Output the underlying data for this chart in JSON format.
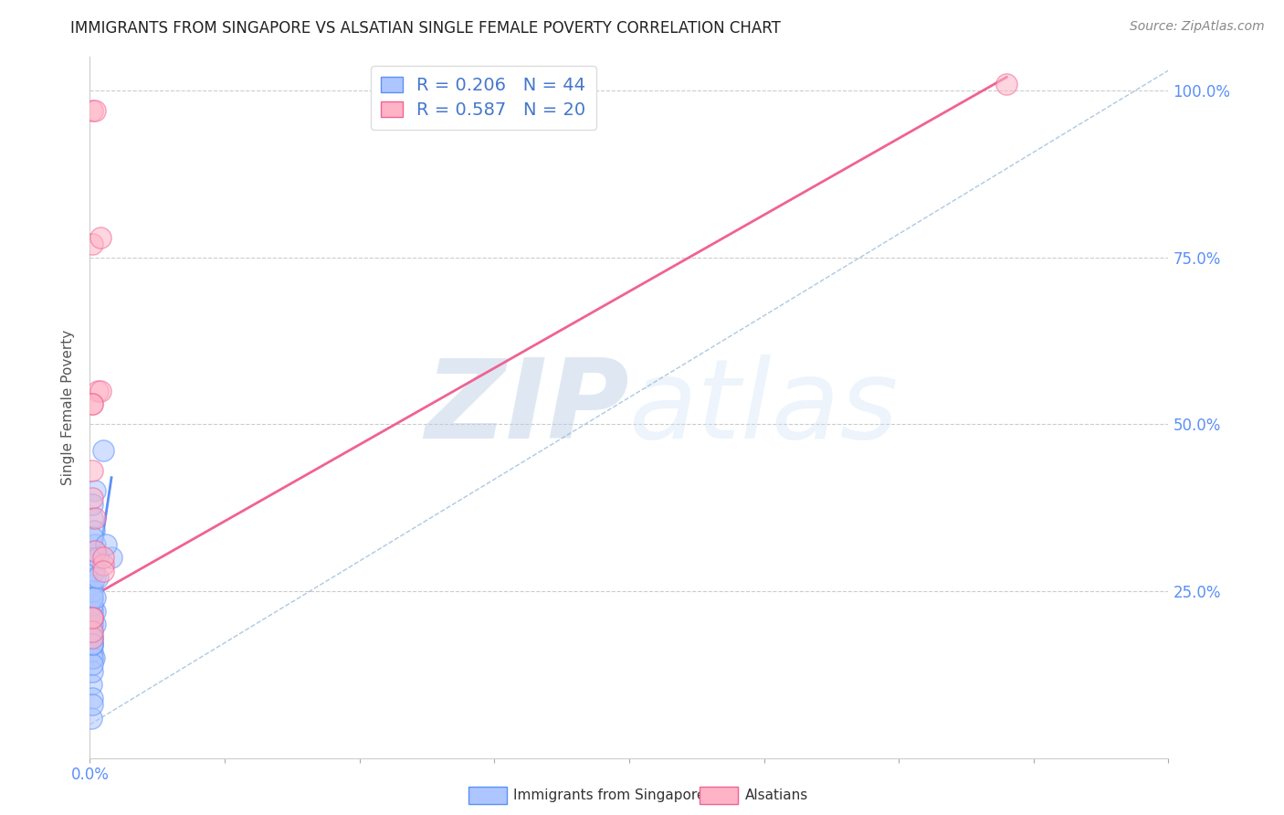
{
  "title": "IMMIGRANTS FROM SINGAPORE VS ALSATIAN SINGLE FEMALE POVERTY CORRELATION CHART",
  "source": "Source: ZipAtlas.com",
  "legend_bottom_blue": "Immigrants from Singapore",
  "legend_bottom_pink": "Alsatians",
  "ylabel": "Single Female Poverty",
  "watermark_zip": "ZIP",
  "watermark_atlas": "atlas",
  "xlim": [
    0.0,
    0.4
  ],
  "ylim": [
    0.0,
    1.05
  ],
  "xtick_vals": [
    0.0,
    0.05,
    0.1,
    0.15,
    0.2,
    0.25,
    0.3,
    0.35,
    0.4
  ],
  "xtick_labels_show": {
    "0.0": "0.0%"
  },
  "ytick_vals": [
    0.25,
    0.5,
    0.75,
    1.0
  ],
  "ytick_labels": [
    "25.0%",
    "50.0%",
    "75.0%",
    "100.0%"
  ],
  "blue_color": "#5b8ff9",
  "pink_color": "#f06292",
  "blue_fill": "#adc6ff",
  "pink_fill": "#ffb3c6",
  "legend_R_blue": "0.206",
  "legend_N_blue": "44",
  "legend_R_pink": "0.587",
  "legend_N_pink": "20",
  "singapore_x": [
    0.001,
    0.002,
    0.001,
    0.0015,
    0.003,
    0.002,
    0.001,
    0.001,
    0.0005,
    0.001,
    0.002,
    0.001,
    0.0008,
    0.001,
    0.0015,
    0.001,
    0.002,
    0.001,
    0.001,
    0.0005,
    0.001,
    0.0008,
    0.002,
    0.0015,
    0.001,
    0.0005,
    0.001,
    0.001,
    0.001,
    0.0008,
    0.001,
    0.002,
    0.003,
    0.001,
    0.0005,
    0.001,
    0.001,
    0.001,
    0.001,
    0.002,
    0.005,
    0.008,
    0.006,
    0.003
  ],
  "singapore_y": [
    0.36,
    0.4,
    0.38,
    0.34,
    0.3,
    0.32,
    0.26,
    0.24,
    0.21,
    0.19,
    0.2,
    0.18,
    0.17,
    0.16,
    0.15,
    0.21,
    0.22,
    0.22,
    0.2,
    0.19,
    0.18,
    0.23,
    0.31,
    0.28,
    0.25,
    0.11,
    0.09,
    0.13,
    0.15,
    0.17,
    0.24,
    0.27,
    0.3,
    0.33,
    0.06,
    0.08,
    0.14,
    0.17,
    0.21,
    0.24,
    0.46,
    0.3,
    0.32,
    0.27
  ],
  "alsatian_x": [
    0.001,
    0.002,
    0.003,
    0.004,
    0.001,
    0.001,
    0.001,
    0.002,
    0.002,
    0.001,
    0.001,
    0.005,
    0.005,
    0.005,
    0.001,
    0.001,
    0.001,
    0.004,
    0.34,
    0.001
  ],
  "alsatian_y": [
    0.97,
    0.97,
    0.55,
    0.55,
    0.77,
    0.43,
    0.39,
    0.36,
    0.31,
    0.21,
    0.18,
    0.29,
    0.3,
    0.28,
    0.53,
    0.53,
    0.19,
    0.78,
    1.01,
    0.21
  ],
  "blue_line_x": [
    0.0,
    0.008
  ],
  "blue_line_y": [
    0.205,
    0.42
  ],
  "pink_line_x": [
    0.0,
    0.34
  ],
  "pink_line_y": [
    0.24,
    1.02
  ],
  "dashed_line_x": [
    0.0,
    0.4
  ],
  "dashed_line_y": [
    0.05,
    1.03
  ]
}
